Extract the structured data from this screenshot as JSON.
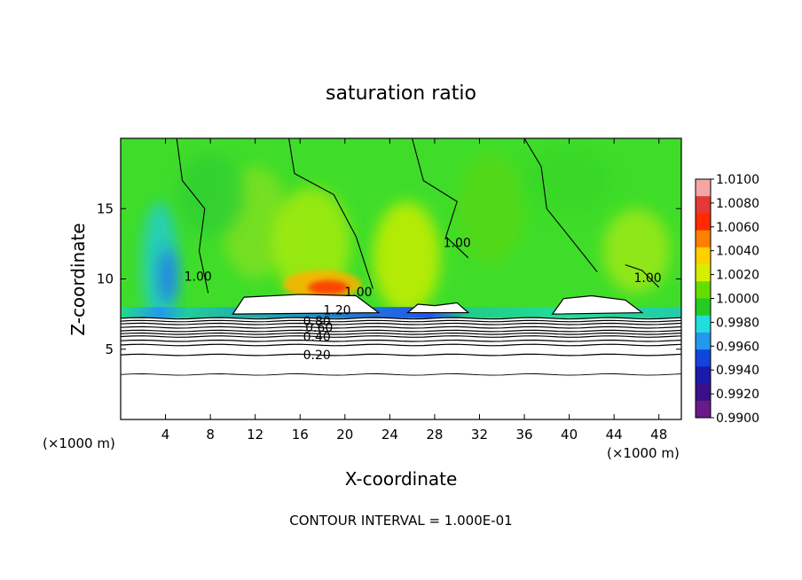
{
  "chart_data": {
    "type": "heatmap",
    "title": "saturation ratio",
    "xlabel": "X-coordinate",
    "ylabel": "Z-coordinate",
    "x_unit_label": "(×1000 m)",
    "x_unit_label_right": "(×1000 m)",
    "xlim": [
      0,
      50
    ],
    "ylim": [
      0,
      20
    ],
    "x_ticks": [
      4,
      8,
      12,
      16,
      20,
      24,
      28,
      32,
      36,
      40,
      44,
      48
    ],
    "y_ticks": [
      5,
      10,
      15
    ],
    "colorbar": {
      "min": 0.99,
      "max": 1.01,
      "labels": [
        "1.0100",
        "1.0080",
        "1.0060",
        "1.0040",
        "1.0020",
        "1.0000",
        "0.9980",
        "0.9960",
        "0.9940",
        "0.9920",
        "0.9900"
      ],
      "colors": [
        "#f4a6a6",
        "#e53935",
        "#ff2a00",
        "#ff7f00",
        "#ffd000",
        "#d6ee00",
        "#66dd00",
        "#22cc22",
        "#22dddd",
        "#2299ee",
        "#1144dd",
        "#1a1aaa",
        "#3a1088",
        "#6a1a88"
      ]
    },
    "contour_labels": [
      {
        "text": "1.20",
        "x": 19.3,
        "z": 7.8
      },
      {
        "text": "0.80",
        "x": 17.5,
        "z": 7.0
      },
      {
        "text": "0.60",
        "x": 17.7,
        "z": 6.55
      },
      {
        "text": "0.40",
        "x": 17.5,
        "z": 5.9
      },
      {
        "text": "0.20",
        "x": 17.5,
        "z": 4.6
      },
      {
        "text": "1.00",
        "x": 6.9,
        "z": 10.2
      },
      {
        "text": "1.00",
        "x": 21.2,
        "z": 9.1
      },
      {
        "text": "1.00",
        "x": 30.0,
        "z": 12.6
      },
      {
        "text": "1.00",
        "x": 47.0,
        "z": 10.1
      }
    ],
    "contour_interval_text": "CONTOUR INTERVAL = 1.000E-01",
    "lower_levels_z": [
      3.2,
      4.6,
      5.3,
      5.6,
      5.9,
      6.1,
      6.3,
      6.55,
      6.8,
      7.0,
      7.2
    ]
  }
}
